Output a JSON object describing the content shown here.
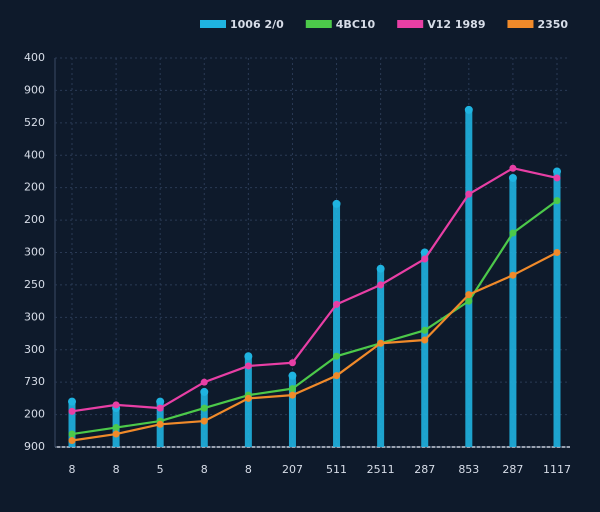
{
  "chart_data": {
    "type": "combo",
    "categories": [
      "8",
      "8",
      "5",
      "8",
      "8",
      "207",
      "511",
      "2511",
      "287",
      "853",
      "287",
      "1117"
    ],
    "series": [
      {
        "name": "1006 2/0",
        "type": "bar",
        "color": "#1fb3e0",
        "values": [
          1.4,
          1.2,
          1.4,
          1.7,
          2.8,
          2.2,
          7.5,
          5.5,
          6.0,
          10.4,
          8.3,
          8.5
        ]
      },
      {
        "name": "4BC10",
        "type": "line",
        "color": "#4cc94a",
        "values": [
          0.4,
          0.6,
          0.8,
          1.2,
          1.6,
          1.8,
          2.8,
          3.2,
          3.6,
          4.5,
          6.6,
          7.6
        ]
      },
      {
        "name": "V12 1989",
        "type": "line",
        "color": "#e83fa5",
        "values": [
          1.1,
          1.3,
          1.2,
          2.0,
          2.5,
          2.6,
          4.4,
          5.0,
          5.8,
          7.8,
          8.6,
          8.3
        ]
      },
      {
        "name": "2350",
        "type": "line",
        "color": "#f08a2a",
        "values": [
          0.2,
          0.4,
          0.7,
          0.8,
          1.5,
          1.6,
          2.2,
          3.2,
          3.3,
          4.7,
          5.3,
          6.0
        ]
      }
    ],
    "ylim": [
      0,
      12
    ],
    "yticks": [
      {
        "value": 0,
        "label": "900"
      },
      {
        "value": 1,
        "label": "200"
      },
      {
        "value": 2,
        "label": "730"
      },
      {
        "value": 3,
        "label": "300"
      },
      {
        "value": 4,
        "label": "300"
      },
      {
        "value": 5,
        "label": "250"
      },
      {
        "value": 6,
        "label": "300"
      },
      {
        "value": 7,
        "label": "200"
      },
      {
        "value": 8,
        "label": "200"
      },
      {
        "value": 9,
        "label": "400"
      },
      {
        "value": 10,
        "label": "520"
      },
      {
        "value": 11,
        "label": "900"
      },
      {
        "value": 12,
        "label": "400"
      }
    ],
    "grid": true,
    "legend": "top-right"
  }
}
